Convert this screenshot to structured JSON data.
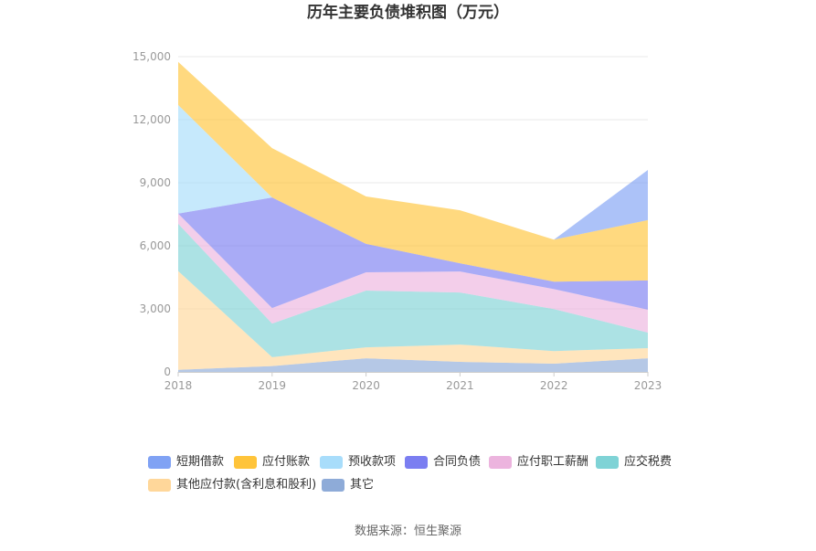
{
  "source": "数据来源：恒生聚源",
  "chart_data": {
    "type": "area",
    "stacked": true,
    "title": "历年主要负债堆积图（万元）",
    "x": [
      "2018",
      "2019",
      "2020",
      "2021",
      "2022",
      "2023"
    ],
    "ylim": [
      0,
      15000
    ],
    "yticks": [
      0,
      3000,
      6000,
      9000,
      12000,
      15000
    ],
    "ytick_labels": [
      "0",
      "3,000",
      "6,000",
      "9,000",
      "12,000",
      "15,000"
    ],
    "grid": true,
    "legend_position": "bottom",
    "series": [
      {
        "name": "短期借款",
        "color": "#80a2f4",
        "values": [
          0,
          0,
          0,
          0,
          0,
          2390
        ]
      },
      {
        "name": "应付账款",
        "color": "#ffc43a",
        "values": [
          2050,
          2350,
          2260,
          2520,
          2000,
          2870
        ]
      },
      {
        "name": "预收款项",
        "color": "#a8ddfb",
        "values": [
          5170,
          0,
          0,
          0,
          0,
          0
        ]
      },
      {
        "name": "合同负债",
        "color": "#7b7ef1",
        "values": [
          0,
          5260,
          1350,
          390,
          350,
          1390
        ]
      },
      {
        "name": "应付职工薪酬",
        "color": "#ecb4de",
        "values": [
          480,
          740,
          870,
          1000,
          950,
          1090
        ]
      },
      {
        "name": "应交税费",
        "color": "#7fd3d6",
        "values": [
          2250,
          1600,
          2700,
          2480,
          2000,
          740
        ]
      },
      {
        "name": "其他应付款(含利息和股利)",
        "color": "#ffd79a",
        "values": [
          4700,
          420,
          520,
          820,
          600,
          480
        ]
      },
      {
        "name": "其它",
        "color": "#8eabd8",
        "values": [
          100,
          280,
          650,
          480,
          390,
          650
        ]
      }
    ]
  }
}
